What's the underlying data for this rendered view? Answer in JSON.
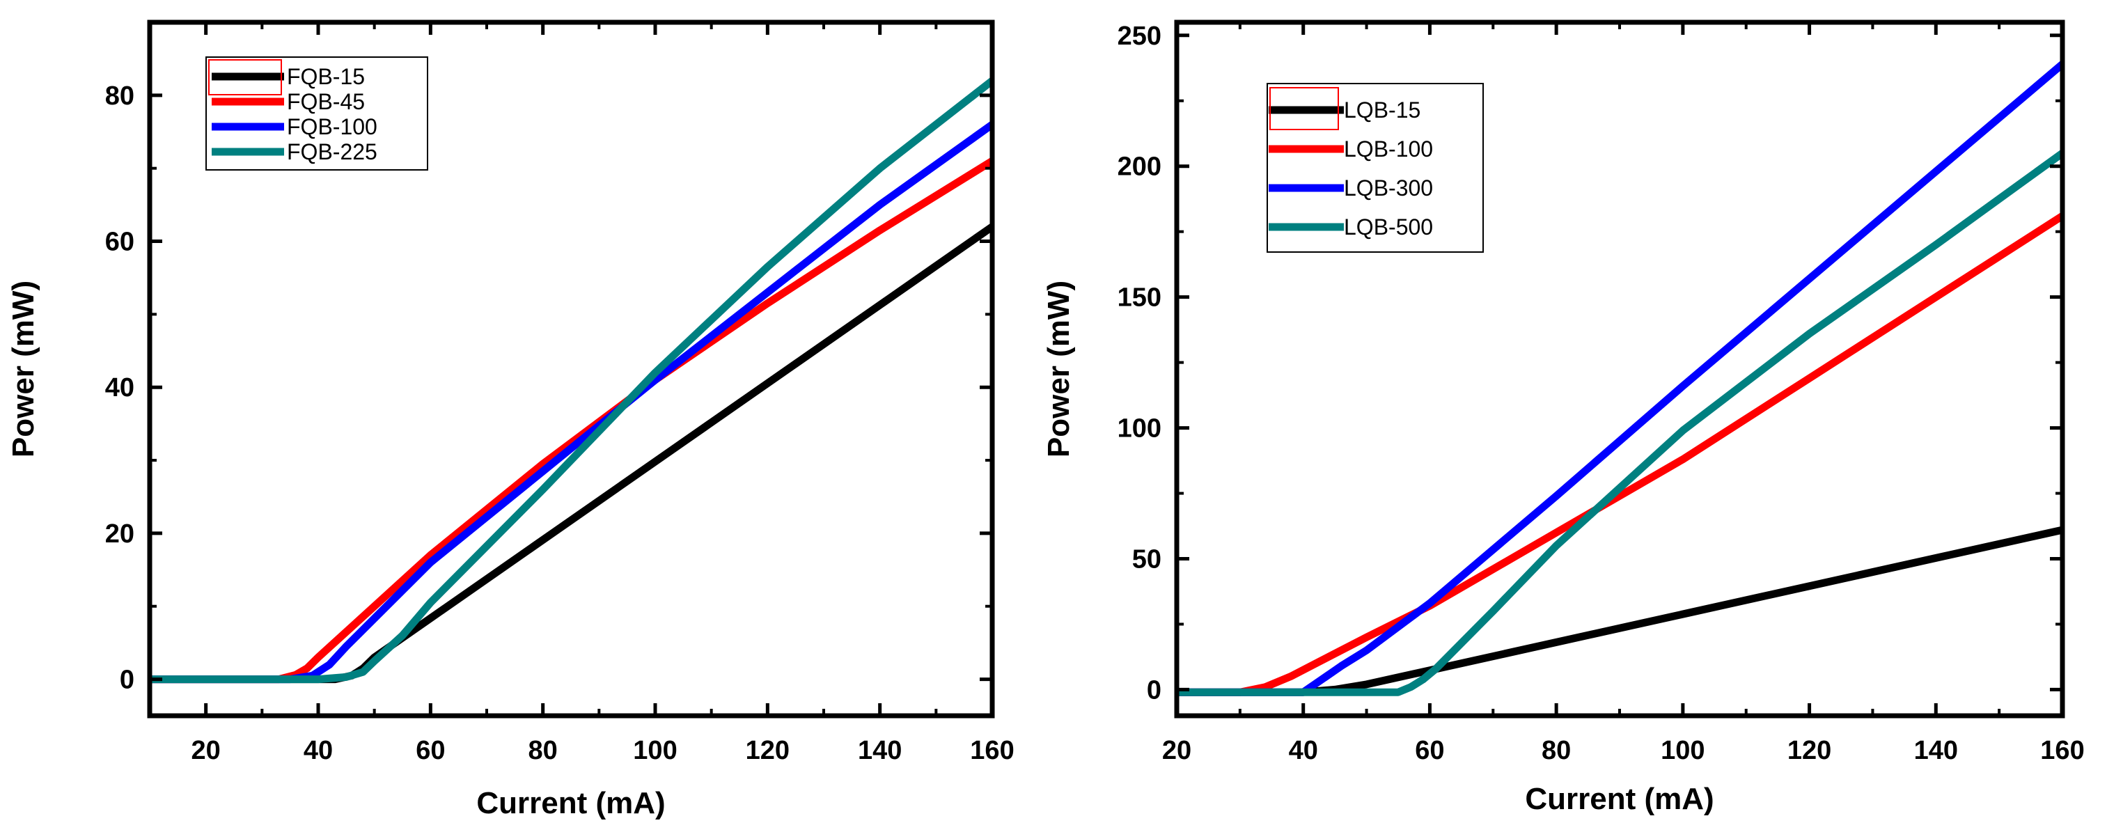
{
  "chart_data": [
    {
      "type": "line",
      "xlabel": "Current (mA)",
      "ylabel": "Power (mW)",
      "xlim": [
        10,
        160
      ],
      "ylim": [
        -5,
        90
      ],
      "xticks": [
        20,
        40,
        60,
        80,
        100,
        120,
        140,
        160
      ],
      "yticks": [
        0,
        20,
        40,
        60,
        80
      ],
      "grid": false,
      "legend_position": "top-left",
      "series": [
        {
          "name": "FQB-15",
          "color": "#000000",
          "x": [
            10,
            30,
            43,
            46,
            48,
            50,
            160
          ],
          "y": [
            0,
            0,
            0,
            0.5,
            1.5,
            3,
            62
          ]
        },
        {
          "name": "FQB-45",
          "color": "#ff0000",
          "x": [
            10,
            33,
            36,
            38,
            40,
            50,
            60,
            80,
            100,
            120,
            140,
            160
          ],
          "y": [
            0,
            0,
            0.6,
            1.5,
            3,
            10,
            17,
            29.5,
            41,
            51.5,
            61.5,
            71
          ]
        },
        {
          "name": "FQB-100",
          "color": "#0000ff",
          "x": [
            10,
            35,
            39,
            42,
            45,
            60,
            80,
            100,
            120,
            140,
            160
          ],
          "y": [
            0,
            0,
            0.5,
            2,
            4.5,
            16,
            28.5,
            41,
            53,
            65,
            76
          ]
        },
        {
          "name": "FQB-225",
          "color": "#008080",
          "x": [
            10,
            40,
            45,
            48,
            50,
            55,
            60,
            80,
            100,
            120,
            140,
            160
          ],
          "y": [
            0,
            0,
            0.3,
            1,
            2.5,
            6,
            10.5,
            26,
            42,
            56.5,
            70,
            82
          ]
        }
      ]
    },
    {
      "type": "line",
      "xlabel": "Current (mA)",
      "ylabel": "Power (mW)",
      "xlim": [
        20,
        160
      ],
      "ylim": [
        -10,
        255
      ],
      "xticks": [
        20,
        40,
        60,
        80,
        100,
        120,
        140,
        160
      ],
      "yticks": [
        0,
        50,
        100,
        150,
        200,
        250
      ],
      "grid": false,
      "legend_position": "top-left",
      "series": [
        {
          "name": "LQB-15",
          "color": "#000000",
          "x": [
            20,
            40,
            45,
            50,
            160
          ],
          "y": [
            -1,
            -1,
            0,
            2,
            61
          ]
        },
        {
          "name": "LQB-100",
          "color": "#ff0000",
          "x": [
            20,
            30,
            34,
            38,
            42,
            50,
            60,
            80,
            100,
            120,
            140,
            160
          ],
          "y": [
            -1,
            -1,
            1,
            5,
            10,
            20,
            32,
            60,
            88,
            119,
            150,
            181
          ]
        },
        {
          "name": "LQB-300",
          "color": "#0000ff",
          "x": [
            20,
            40,
            43,
            46,
            50,
            60,
            80,
            100,
            120,
            140,
            160
          ],
          "y": [
            -1,
            -1,
            4,
            9,
            15,
            33,
            74,
            116,
            157,
            198,
            239
          ]
        },
        {
          "name": "LQB-500",
          "color": "#008080",
          "x": [
            20,
            55,
            57,
            59,
            61,
            70,
            80,
            100,
            120,
            140,
            160
          ],
          "y": [
            -1,
            -1,
            1,
            4,
            8,
            30,
            55,
            99,
            136,
            170,
            205
          ]
        }
      ]
    }
  ]
}
